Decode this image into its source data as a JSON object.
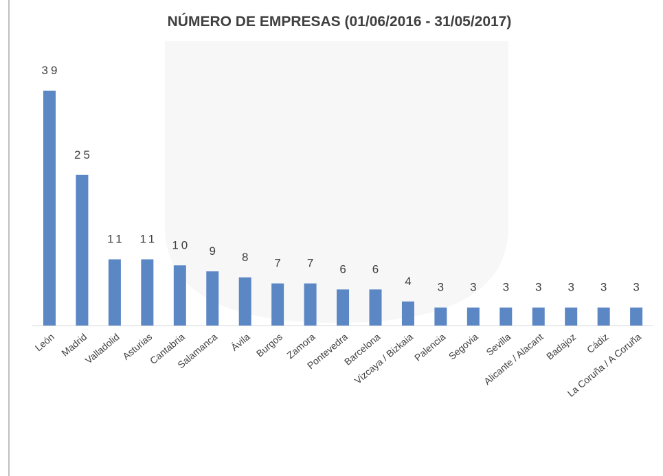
{
  "chart_data": {
    "type": "bar",
    "title": "NÚMERO DE EMPRESAS (01/06/2016 - 31/05/2017)",
    "categories": [
      "León",
      "Madrid",
      "Valladolid",
      "Asturias",
      "Cantabria",
      "Salamanca",
      "Ávila",
      "Burgos",
      "Zamora",
      "Pontevedra",
      "Barcelona",
      "Vizcaya / Bizkaia",
      "Palencia",
      "Segovia",
      "Sevilla",
      "Alicante / Alacant",
      "Badajoz",
      "Cádiz",
      "La Coruña / A Coruña"
    ],
    "values": [
      39,
      25,
      11,
      11,
      10,
      9,
      8,
      7,
      7,
      6,
      6,
      4,
      3,
      3,
      3,
      3,
      3,
      3,
      3
    ],
    "color": "#5b87c5"
  }
}
